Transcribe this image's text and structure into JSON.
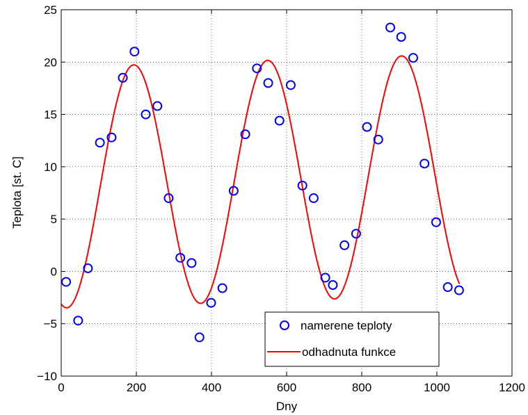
{
  "chart_data": {
    "type": "scatter",
    "title": "",
    "xlabel": "Dny",
    "ylabel": "Teplota [st. C]",
    "xlim": [
      0,
      1200
    ],
    "ylim": [
      -10,
      25
    ],
    "xticks": [
      0,
      200,
      400,
      600,
      800,
      1000,
      1200
    ],
    "yticks": [
      -10,
      -5,
      0,
      5,
      10,
      15,
      20,
      25
    ],
    "xtick_labels": [
      "0",
      "200",
      "400",
      "600",
      "800",
      "1000",
      "1200"
    ],
    "ytick_labels": [
      "−10",
      "−5",
      "0",
      "5",
      "10",
      "15",
      "20",
      "25"
    ],
    "grid": true,
    "legend_position": "bottom-right",
    "series": [
      {
        "name": "namerene teploty",
        "kind": "markers",
        "marker": "circle",
        "color": "#0000ff",
        "points": [
          [
            13,
            -1.0
          ],
          [
            45,
            -4.7
          ],
          [
            71,
            0.3
          ],
          [
            103,
            12.3
          ],
          [
            134,
            12.8
          ],
          [
            164,
            18.5
          ],
          [
            195,
            21.0
          ],
          [
            225,
            15.0
          ],
          [
            256,
            15.8
          ],
          [
            286,
            7.0
          ],
          [
            317,
            1.3
          ],
          [
            347,
            0.8
          ],
          [
            368,
            -6.3
          ],
          [
            399,
            -3.0
          ],
          [
            429,
            -1.6
          ],
          [
            459,
            7.7
          ],
          [
            490,
            13.1
          ],
          [
            521,
            19.4
          ],
          [
            551,
            18.0
          ],
          [
            581,
            14.4
          ],
          [
            611,
            17.8
          ],
          [
            642,
            8.2
          ],
          [
            672,
            7.0
          ],
          [
            703,
            -0.6
          ],
          [
            723,
            -1.3
          ],
          [
            754,
            2.5
          ],
          [
            785,
            3.6
          ],
          [
            814,
            13.8
          ],
          [
            844,
            12.6
          ],
          [
            876,
            23.3
          ],
          [
            905,
            22.4
          ],
          [
            937,
            20.4
          ],
          [
            967,
            10.3
          ],
          [
            998,
            4.7
          ],
          [
            1029,
            -1.5
          ],
          [
            1059,
            -1.8
          ]
        ]
      },
      {
        "name": "odhadnuta funkce",
        "kind": "line",
        "color": "#ff0000",
        "model": {
          "form": "y = mean + trend*x + amp*cos(2*pi*(x - peak)/period)",
          "mean": 8.0,
          "trend": 0.0012,
          "amp": 11.5,
          "peak": 193,
          "period": 356.5
        },
        "x_range": [
          0,
          1060
        ]
      }
    ]
  }
}
